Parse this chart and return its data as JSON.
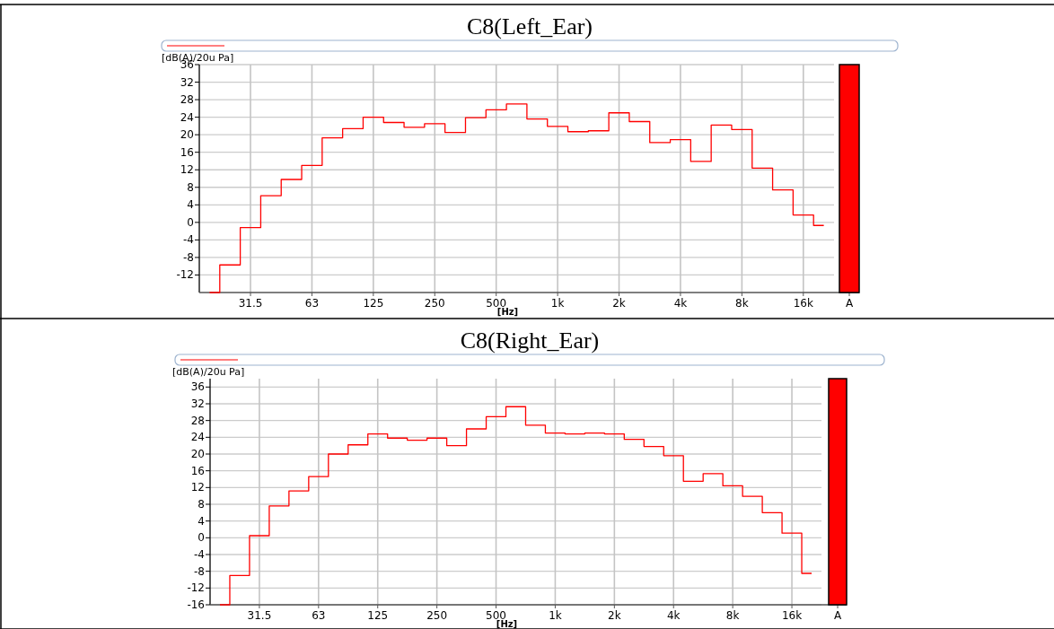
{
  "chart_data": [
    {
      "type": "step",
      "title": "C8(Left_Ear)",
      "xlabel": "[Hz]",
      "ylabel": "[dB(A)/20u Pa]",
      "categories": [
        null,
        null,
        "31.5",
        null,
        null,
        "63",
        null,
        null,
        "125",
        null,
        null,
        "250",
        null,
        null,
        "500",
        null,
        null,
        "1k",
        null,
        null,
        "2k",
        null,
        null,
        "4k",
        null,
        null,
        "8k",
        null,
        null,
        "16k",
        null,
        "A"
      ],
      "series": [
        {
          "color": "#ff0000",
          "values": [
            -16,
            -9.7,
            -1.2,
            6.1,
            9.8,
            13.0,
            19.3,
            21.4,
            24.0,
            22.8,
            21.7,
            22.5,
            20.5,
            23.9,
            25.7,
            27.0,
            23.6,
            21.9,
            20.7,
            20.9,
            25.0,
            23.0,
            18.2,
            18.9,
            13.9,
            22.2,
            21.2,
            12.4,
            7.4,
            1.7,
            -0.7,
            null
          ]
        }
      ],
      "ylim": [
        -16,
        36
      ],
      "yticks": [
        -12,
        -8,
        -4,
        0,
        4,
        8,
        12,
        16,
        20,
        24,
        28,
        32,
        36
      ],
      "grid": true
    },
    {
      "type": "step",
      "title": "C8(Right_Ear)",
      "xlabel": "[Hz]",
      "ylabel": "[dB(A)/20u Pa]",
      "categories": [
        null,
        null,
        "31.5",
        null,
        null,
        "63",
        null,
        null,
        "125",
        null,
        null,
        "250",
        null,
        null,
        "500",
        null,
        null,
        "1k",
        null,
        null,
        "2k",
        null,
        null,
        "4k",
        null,
        null,
        "8k",
        null,
        null,
        "16k",
        null,
        "A"
      ],
      "series": [
        {
          "color": "#ff0000",
          "values": [
            -16,
            -9.0,
            0.5,
            7.6,
            11.2,
            14.6,
            20.0,
            22.2,
            24.8,
            23.8,
            23.3,
            23.8,
            22.0,
            26.0,
            28.9,
            31.3,
            26.9,
            25.0,
            24.8,
            25.0,
            24.8,
            23.5,
            21.8,
            19.6,
            13.5,
            15.3,
            12.4,
            9.9,
            6.0,
            1.1,
            -8.5,
            null
          ]
        }
      ],
      "ylim": [
        -16,
        38
      ],
      "yticks": [
        -16,
        -12,
        -8,
        -4,
        0,
        4,
        8,
        12,
        16,
        20,
        24,
        28,
        32,
        36
      ],
      "grid": true
    }
  ]
}
